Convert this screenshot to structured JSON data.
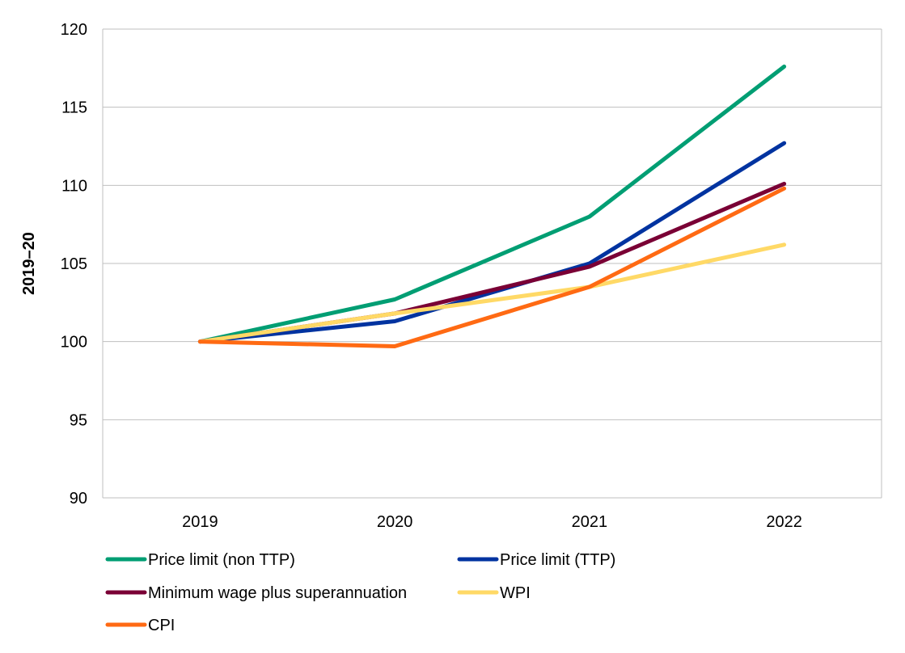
{
  "chart_data": {
    "type": "line",
    "title": "",
    "xlabel": "",
    "ylabel": "2019–20",
    "categories": [
      "2019",
      "2020",
      "2021",
      "2022"
    ],
    "ylim": [
      90,
      120
    ],
    "yticks": [
      90,
      95,
      100,
      105,
      110,
      115,
      120
    ],
    "grid": true,
    "legend_position": "bottom",
    "series": [
      {
        "name": "Price limit (non TTP)",
        "color": "#009E73",
        "values": [
          100,
          102.7,
          108.0,
          117.6
        ]
      },
      {
        "name": "Price limit (TTP)",
        "color": "#0033A0",
        "values": [
          100,
          101.3,
          105.0,
          112.7
        ]
      },
      {
        "name": "Minimum wage plus superannuation",
        "color": "#7A0035",
        "values": [
          100,
          101.8,
          104.8,
          110.1
        ]
      },
      {
        "name": "WPI",
        "color": "#FFD966",
        "values": [
          100,
          101.8,
          103.5,
          106.2
        ]
      },
      {
        "name": "CPI",
        "color": "#FF6A13",
        "values": [
          100,
          99.7,
          103.5,
          109.8
        ]
      }
    ]
  }
}
